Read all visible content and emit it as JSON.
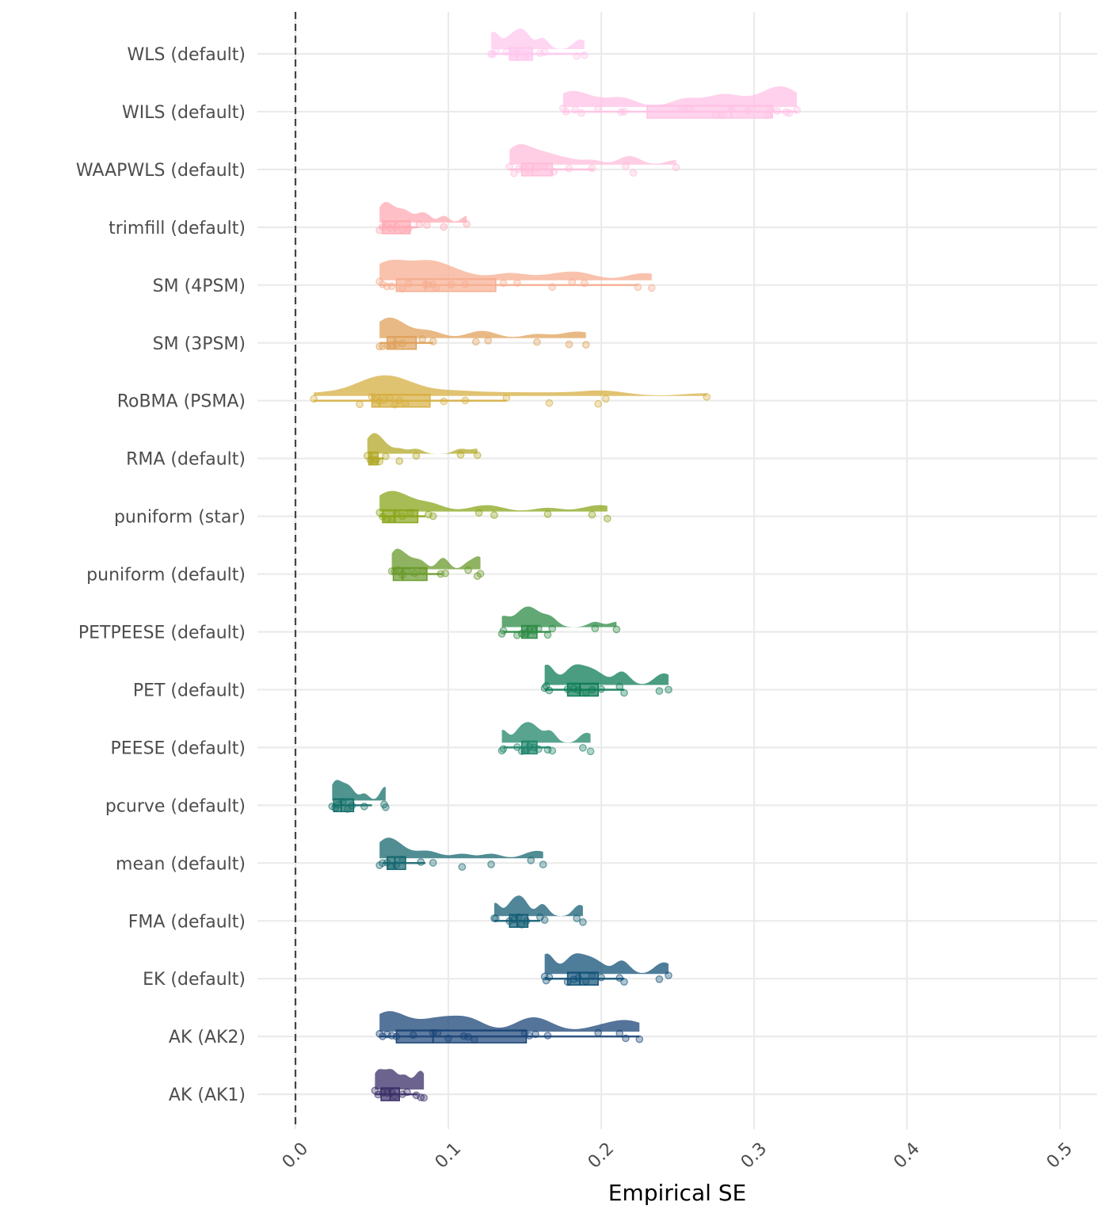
{
  "chart_data": {
    "type": "raincloud",
    "title": "",
    "xlabel": "Empirical SE",
    "ylabel": "",
    "xlim": [
      0,
      0.5
    ],
    "x_ticks": [
      0.0,
      0.1,
      0.2,
      0.3,
      0.4,
      0.5
    ],
    "x_tick_labels": [
      "0.0",
      "0.1",
      "0.2",
      "0.3",
      "0.4",
      "0.5"
    ],
    "reference_line": {
      "x": 0,
      "style": "dashed",
      "color": "#444444"
    },
    "grid": true,
    "legend": "none",
    "series": [
      {
        "name": "WLS (default)",
        "color": "#FFC8EE",
        "box": {
          "q1": 0.14,
          "median": 0.145,
          "q3": 0.155,
          "lo": 0.128,
          "hi": 0.19
        },
        "points": [
          0.128,
          0.129,
          0.131,
          0.138,
          0.142,
          0.145,
          0.147,
          0.15,
          0.152,
          0.16,
          0.163,
          0.184,
          0.189
        ]
      },
      {
        "name": "WILS (default)",
        "color": "#FFC2E6",
        "box": {
          "q1": 0.23,
          "median": 0.285,
          "q3": 0.312,
          "lo": 0.175,
          "hi": 0.328
        },
        "points": [
          0.175,
          0.177,
          0.183,
          0.187,
          0.198,
          0.213,
          0.215,
          0.253,
          0.258,
          0.275,
          0.279,
          0.285,
          0.296,
          0.309,
          0.311,
          0.315,
          0.321,
          0.323,
          0.328
        ]
      },
      {
        "name": "WAAPWLS (default)",
        "color": "#FFBDDB",
        "box": {
          "q1": 0.148,
          "median": 0.155,
          "q3": 0.168,
          "lo": 0.14,
          "hi": 0.195
        },
        "points": [
          0.14,
          0.143,
          0.146,
          0.149,
          0.152,
          0.158,
          0.163,
          0.169,
          0.179,
          0.194,
          0.216,
          0.221,
          0.249
        ]
      },
      {
        "name": "trimfill (default)",
        "color": "#FFAAB4",
        "box": {
          "q1": 0.057,
          "median": 0.065,
          "q3": 0.075,
          "lo": 0.055,
          "hi": 0.08
        },
        "points": [
          0.055,
          0.057,
          0.06,
          0.062,
          0.066,
          0.07,
          0.074,
          0.081,
          0.086,
          0.097,
          0.112
        ]
      },
      {
        "name": "SM (4PSM)",
        "color": "#F7AE91",
        "box": {
          "q1": 0.066,
          "median": 0.085,
          "q3": 0.131,
          "lo": 0.055,
          "hi": 0.224
        },
        "points": [
          0.055,
          0.057,
          0.06,
          0.063,
          0.07,
          0.074,
          0.085,
          0.087,
          0.09,
          0.092,
          0.102,
          0.111,
          0.136,
          0.145,
          0.168,
          0.181,
          0.189,
          0.224,
          0.233
        ]
      },
      {
        "name": "SM (3PSM)",
        "color": "#E0A15B",
        "box": {
          "q1": 0.06,
          "median": 0.065,
          "q3": 0.079,
          "lo": 0.055,
          "hi": 0.09
        },
        "points": [
          0.055,
          0.057,
          0.06,
          0.063,
          0.066,
          0.07,
          0.083,
          0.09,
          0.118,
          0.126,
          0.158,
          0.179,
          0.19
        ]
      },
      {
        "name": "RoBMA (PSMA)",
        "color": "#D6AF42",
        "box": {
          "q1": 0.05,
          "median": 0.055,
          "q3": 0.088,
          "lo": 0.012,
          "hi": 0.138
        },
        "points": [
          0.012,
          0.042,
          0.05,
          0.052,
          0.055,
          0.058,
          0.062,
          0.065,
          0.068,
          0.072,
          0.097,
          0.111,
          0.138,
          0.166,
          0.198,
          0.203,
          0.269
        ]
      },
      {
        "name": "RMA (default)",
        "color": "#B3A828",
        "box": {
          "q1": 0.048,
          "median": 0.05,
          "q3": 0.054,
          "lo": 0.047,
          "hi": 0.058
        },
        "points": [
          0.047,
          0.049,
          0.051,
          0.053,
          0.055,
          0.059,
          0.068,
          0.079,
          0.108,
          0.119
        ]
      },
      {
        "name": "puniform (star)",
        "color": "#8AA51B",
        "box": {
          "q1": 0.057,
          "median": 0.065,
          "q3": 0.08,
          "lo": 0.055,
          "hi": 0.085
        },
        "points": [
          0.055,
          0.057,
          0.06,
          0.063,
          0.066,
          0.07,
          0.075,
          0.087,
          0.09,
          0.12,
          0.13,
          0.165,
          0.194,
          0.204
        ]
      },
      {
        "name": "puniform (default)",
        "color": "#6A9A2C",
        "box": {
          "q1": 0.064,
          "median": 0.07,
          "q3": 0.086,
          "lo": 0.063,
          "hi": 0.096
        },
        "points": [
          0.063,
          0.065,
          0.067,
          0.07,
          0.073,
          0.078,
          0.083,
          0.095,
          0.098,
          0.113,
          0.119,
          0.121
        ]
      },
      {
        "name": "PETPEESE (default)",
        "color": "#2E8B46",
        "box": {
          "q1": 0.148,
          "median": 0.152,
          "q3": 0.158,
          "lo": 0.136,
          "hi": 0.167
        },
        "points": [
          0.135,
          0.136,
          0.145,
          0.148,
          0.151,
          0.153,
          0.156,
          0.159,
          0.165,
          0.168,
          0.196,
          0.21
        ]
      },
      {
        "name": "PET (default)",
        "color": "#0E7C55",
        "box": {
          "q1": 0.178,
          "median": 0.186,
          "q3": 0.198,
          "lo": 0.163,
          "hi": 0.215
        },
        "points": [
          0.163,
          0.164,
          0.166,
          0.178,
          0.182,
          0.185,
          0.19,
          0.194,
          0.2,
          0.212,
          0.215,
          0.238,
          0.244
        ]
      },
      {
        "name": "PEESE (default)",
        "color": "#20856A",
        "box": {
          "q1": 0.148,
          "median": 0.152,
          "q3": 0.158,
          "lo": 0.136,
          "hi": 0.167
        },
        "points": [
          0.135,
          0.136,
          0.145,
          0.148,
          0.151,
          0.153,
          0.156,
          0.159,
          0.165,
          0.168,
          0.188,
          0.193
        ]
      },
      {
        "name": "pcurve (default)",
        "color": "#16706A",
        "box": {
          "q1": 0.025,
          "median": 0.03,
          "q3": 0.038,
          "lo": 0.024,
          "hi": 0.05
        },
        "points": [
          0.024,
          0.026,
          0.028,
          0.031,
          0.034,
          0.037,
          0.045,
          0.058,
          0.059
        ]
      },
      {
        "name": "mean (default)",
        "color": "#17676F",
        "box": {
          "q1": 0.06,
          "median": 0.065,
          "q3": 0.072,
          "lo": 0.057,
          "hi": 0.085
        },
        "points": [
          0.055,
          0.057,
          0.06,
          0.062,
          0.066,
          0.07,
          0.082,
          0.09,
          0.109,
          0.128,
          0.154,
          0.162
        ]
      },
      {
        "name": "FMA (default)",
        "color": "#155E75",
        "box": {
          "q1": 0.14,
          "median": 0.145,
          "q3": 0.152,
          "lo": 0.13,
          "hi": 0.16
        },
        "points": [
          0.13,
          0.131,
          0.14,
          0.143,
          0.146,
          0.148,
          0.151,
          0.16,
          0.163,
          0.184,
          0.188
        ]
      },
      {
        "name": "EK (default)",
        "color": "#135277",
        "box": {
          "q1": 0.178,
          "median": 0.186,
          "q3": 0.198,
          "lo": 0.163,
          "hi": 0.215
        },
        "points": [
          0.163,
          0.164,
          0.166,
          0.178,
          0.182,
          0.185,
          0.19,
          0.194,
          0.2,
          0.212,
          0.215,
          0.238,
          0.244
        ]
      },
      {
        "name": "AK (AK2)",
        "color": "#1B4578",
        "box": {
          "q1": 0.066,
          "median": 0.09,
          "q3": 0.151,
          "lo": 0.055,
          "hi": 0.225
        },
        "points": [
          0.055,
          0.057,
          0.06,
          0.063,
          0.066,
          0.077,
          0.09,
          0.093,
          0.1,
          0.11,
          0.113,
          0.117,
          0.15,
          0.153,
          0.157,
          0.165,
          0.198,
          0.212,
          0.216,
          0.225
        ]
      },
      {
        "name": "AK (AK1)",
        "color": "#3B2F68",
        "box": {
          "q1": 0.056,
          "median": 0.062,
          "q3": 0.068,
          "lo": 0.052,
          "hi": 0.08
        },
        "points": [
          0.052,
          0.054,
          0.057,
          0.06,
          0.063,
          0.065,
          0.07,
          0.073,
          0.079,
          0.082,
          0.084
        ]
      }
    ]
  }
}
